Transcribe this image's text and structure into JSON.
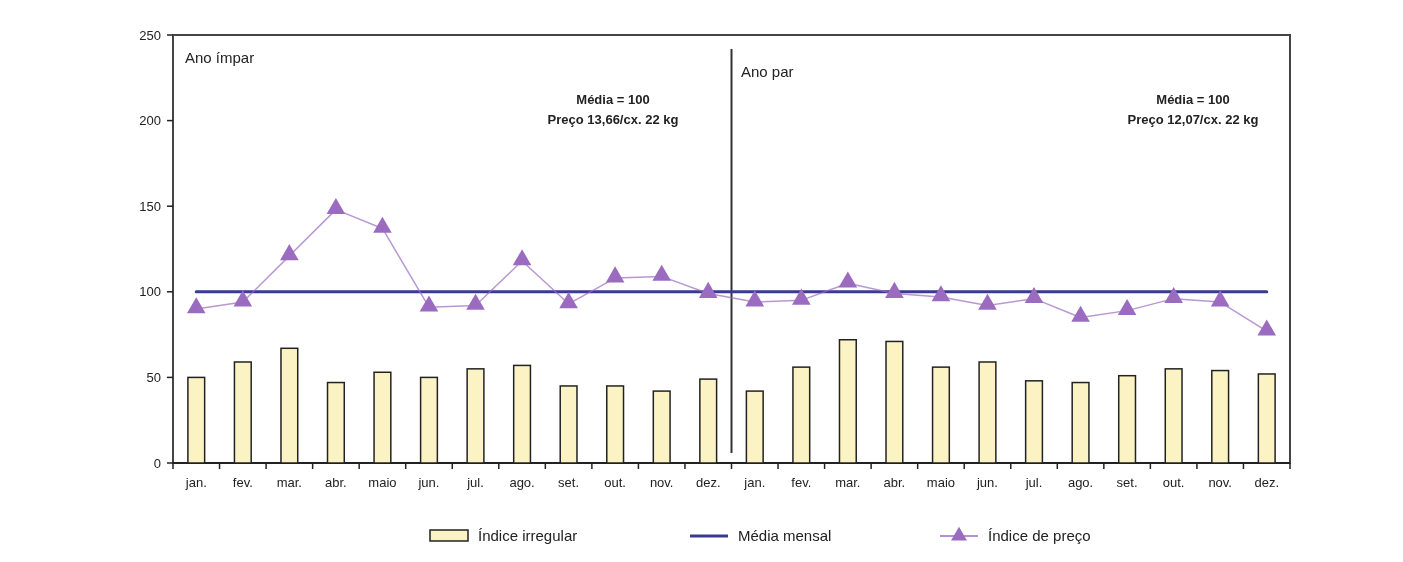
{
  "chart_data": {
    "type": "bar",
    "categories": [
      "jan.",
      "fev.",
      "mar.",
      "abr.",
      "maio",
      "jun.",
      "jul.",
      "ago.",
      "set.",
      "out.",
      "nov.",
      "dez.",
      "jan.",
      "fev.",
      "mar.",
      "abr.",
      "maio",
      "jun.",
      "jul.",
      "ago.",
      "set.",
      "out.",
      "nov.",
      "dez."
    ],
    "series": [
      {
        "name": "Índice irregular",
        "color": "#fbf3c4",
        "values": [
          50,
          59,
          67,
          47,
          53,
          50,
          55,
          57,
          45,
          45,
          42,
          49,
          42,
          56,
          72,
          71,
          56,
          59,
          48,
          47,
          51,
          55,
          54,
          52
        ]
      },
      {
        "name": "Média mensal",
        "type": "line",
        "color": "#3a3a8e",
        "marker": "none",
        "values": [
          100,
          100,
          100,
          100,
          100,
          100,
          100,
          100,
          100,
          100,
          100,
          100,
          100,
          100,
          100,
          100,
          100,
          100,
          100,
          100,
          100,
          100,
          100,
          100
        ]
      },
      {
        "name": "Índice de preço",
        "type": "line",
        "color": "#9b6bc0",
        "marker": "triangle",
        "values": [
          90,
          94,
          121,
          148,
          137,
          91,
          92,
          118,
          93,
          108,
          109,
          99,
          94,
          95,
          105,
          99,
          97,
          92,
          96,
          85,
          89,
          96,
          94,
          77
        ]
      }
    ],
    "ylim": [
      0,
      250
    ],
    "yticks": [
      0,
      50,
      100,
      150,
      200,
      250
    ],
    "grid": false,
    "legend": "bottom",
    "annotations": [
      "Ano ímpar",
      "Média = 100\nPreço 13,66/cx. 22 kg",
      "Ano par",
      "Média = 100\nPreço 12,07/cx. 22 kg"
    ]
  }
}
